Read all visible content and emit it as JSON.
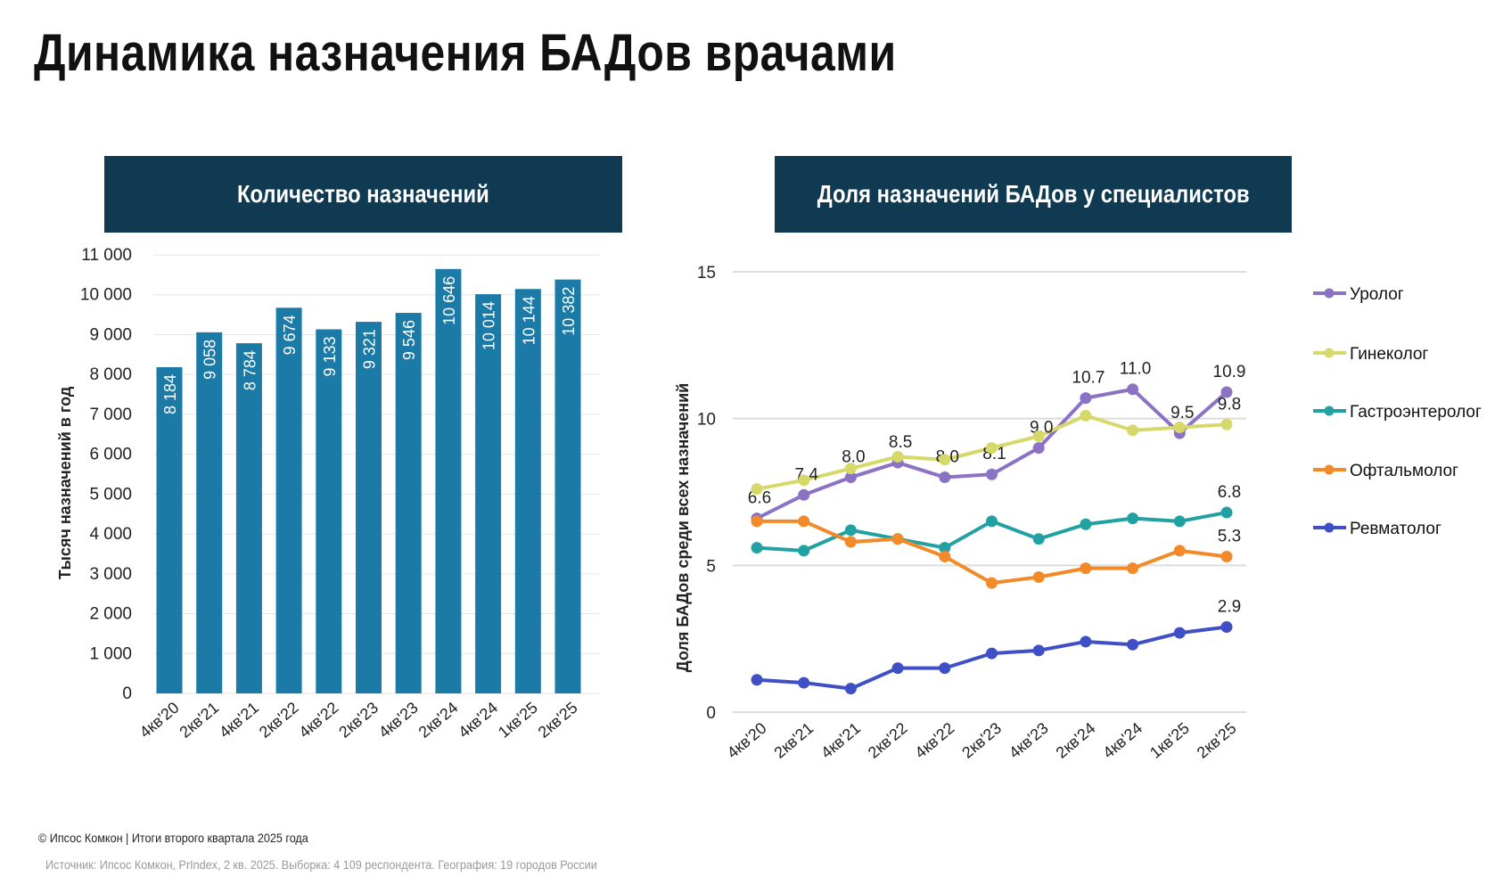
{
  "title": "Динамика назначения БАДов врачами",
  "footer": {
    "copyright": "© Ипсос Комкон | Итоги второго квартала 2025 года",
    "source": "Источник: Ипсос Комкон, PrIndex, 2 кв. 2025. Выборка: 4 109 респондента. География: 19 городов России"
  },
  "chart_data": [
    {
      "type": "bar",
      "title": "Количество назначений",
      "ylabel": "Тысяч назначений в год",
      "xlabel": "",
      "categories": [
        "4кв'20",
        "2кв'21",
        "4кв'21",
        "2кв'22",
        "4кв'22",
        "2кв'23",
        "4кв'23",
        "2кв'24",
        "4кв'24",
        "1кв'25",
        "2кв'25"
      ],
      "values": [
        8184,
        9058,
        8784,
        9674,
        9133,
        9321,
        9546,
        10646,
        10014,
        10144,
        10382
      ],
      "data_labels": [
        "8 184",
        "9 058",
        "8 784",
        "9 674",
        "9 133",
        "9 321",
        "9 546",
        "10 646",
        "10 014",
        "10 144",
        "10 382"
      ],
      "ylim": [
        0,
        11000
      ],
      "yticks": [
        "0",
        "1 000",
        "2 000",
        "3 000",
        "4 000",
        "5 000",
        "6 000",
        "7 000",
        "8 000",
        "9 000",
        "10 000",
        "11 000"
      ],
      "grid": true,
      "color": "#1b7aa6"
    },
    {
      "type": "line",
      "title": "Доля назначений БАДов у специалистов",
      "ylabel": "Доля БАДов среди всех назначений",
      "xlabel": "",
      "categories": [
        "4кв'20",
        "2кв'21",
        "4кв'21",
        "2кв'22",
        "4кв'22",
        "2кв'23",
        "4кв'23",
        "2кв'24",
        "4кв'24",
        "1кв'25",
        "2кв'25"
      ],
      "ylim": [
        0,
        15
      ],
      "yticks": [
        "0",
        "5",
        "10",
        "15"
      ],
      "grid": true,
      "legend": "right",
      "series": [
        {
          "name": "Уролог",
          "color": "#8b72c4",
          "values": [
            6.6,
            7.4,
            8.0,
            8.5,
            8.0,
            8.1,
            9.0,
            10.7,
            11.0,
            9.5,
            10.9
          ],
          "labels": [
            "6.6",
            "7.4",
            "8.0",
            "8.5",
            "8.0",
            "8.1",
            "9.0",
            "10.7",
            "11.0",
            "9.5",
            "10.9"
          ]
        },
        {
          "name": "Гинеколог",
          "color": "#d6d86a",
          "values": [
            7.6,
            7.9,
            8.3,
            8.7,
            8.6,
            9.0,
            9.4,
            10.1,
            9.6,
            9.7,
            9.8
          ],
          "labels": [
            "",
            "",
            "",
            "",
            "",
            "",
            "",
            "",
            "",
            "",
            "9.8"
          ]
        },
        {
          "name": "Гастроэнтеролог",
          "color": "#22a1a3",
          "values": [
            5.6,
            5.5,
            6.2,
            5.9,
            5.6,
            6.5,
            5.9,
            6.4,
            6.6,
            6.5,
            6.8
          ],
          "labels": [
            "",
            "",
            "",
            "",
            "",
            "",
            "",
            "",
            "",
            "",
            "6.8"
          ]
        },
        {
          "name": "Офтальмолог",
          "color": "#f28a2a",
          "values": [
            6.5,
            6.5,
            5.8,
            5.9,
            5.3,
            4.4,
            4.6,
            4.9,
            4.9,
            5.5,
            5.3
          ],
          "labels": [
            "",
            "",
            "",
            "",
            "",
            "",
            "",
            "",
            "",
            "",
            "5.3"
          ]
        },
        {
          "name": "Ревматолог",
          "color": "#3f4fc6",
          "values": [
            1.1,
            1.0,
            0.8,
            1.5,
            1.5,
            2.0,
            2.1,
            2.4,
            2.3,
            2.7,
            2.9
          ],
          "labels": [
            "",
            "",
            "",
            "",
            "",
            "",
            "",
            "",
            "",
            "",
            "2.9"
          ]
        }
      ]
    }
  ]
}
